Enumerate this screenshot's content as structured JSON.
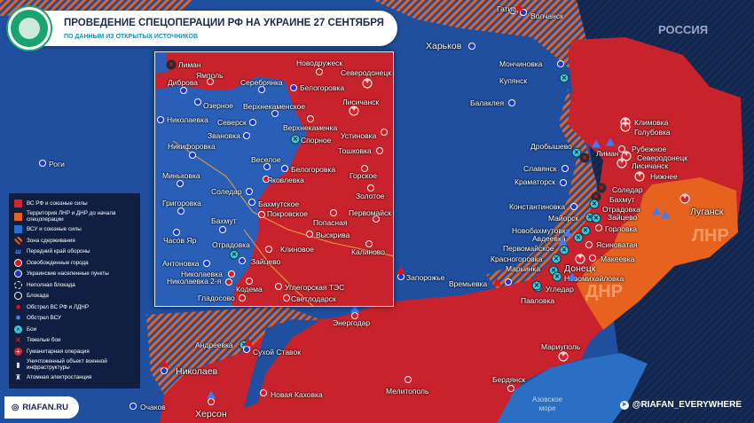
{
  "header": {
    "title": "ПРОВЕДЕНИЕ СПЕЦОПЕРАЦИИ РФ НА УКРАИНЕ 27 СЕНТЯБРЯ",
    "subtitle": "ПО ДАННЫМ ИЗ ОТКРЫТЫХ ИСТОЧНИКОВ"
  },
  "colors": {
    "rf_forces": "#c8232c",
    "lnr_dnr": "#e8621f",
    "ua_forces": "#1f4f9e",
    "russia": "#13264d",
    "containment_stripes": "#e8621f"
  },
  "regions": {
    "russia": "РОССИЯ",
    "lnr": "ЛНР",
    "dnr": "ДНР",
    "sea": "Азовское море"
  },
  "legend": [
    {
      "icon": "red-square",
      "label": "ВС РФ и союзные силы"
    },
    {
      "icon": "orange-square",
      "label": "Территория ЛНР и ДНР до начала спецоперации"
    },
    {
      "icon": "blue-square",
      "label": "ВСУ и союзные силы"
    },
    {
      "icon": "striped-zone",
      "label": "Зона сдерживания"
    },
    {
      "icon": "defense-line",
      "label": "Передний край обороны"
    },
    {
      "icon": "red-dot",
      "label": "Освобожденные города"
    },
    {
      "icon": "blue-dot",
      "label": "Украинские населенные пункты"
    },
    {
      "icon": "dashed-circle",
      "label": "Неполная блокада"
    },
    {
      "icon": "circle",
      "label": "Блокада"
    },
    {
      "icon": "red-explosion",
      "label": "Обстрел ВС РФ и ЛДНР"
    },
    {
      "icon": "blue-explosion",
      "label": "Обстрел ВСУ"
    },
    {
      "icon": "battle-x",
      "label": "Бои"
    },
    {
      "icon": "heavy-battle-x",
      "label": "Тяжелые бои"
    },
    {
      "icon": "red-cross",
      "label": "Гуманитарная операция"
    },
    {
      "icon": "destroyed-building",
      "label": "Уничтоженный объект военной инфраструктуры"
    },
    {
      "icon": "nuclear-plant",
      "label": "Атомная электростанция"
    }
  ],
  "main_map": {
    "cities": [
      {
        "name": "Гатище",
        "marker": "ukrainian"
      },
      {
        "name": "Волчанск",
        "marker": "ukrainian"
      },
      {
        "name": "Харьков",
        "marker": "ukrainian"
      },
      {
        "name": "Мончиновка",
        "marker": "ukrainian"
      },
      {
        "name": "Купянск",
        "marker": "battle"
      },
      {
        "name": "Балаклея",
        "marker": "ukrainian"
      },
      {
        "name": "Роги",
        "marker": "ukrainian"
      },
      {
        "name": "Дробышево",
        "marker": "battle"
      },
      {
        "name": "Лиман",
        "marker": "heavy"
      },
      {
        "name": "Славянск",
        "marker": "ukrainian"
      },
      {
        "name": "Краматорск",
        "marker": "ukrainian"
      },
      {
        "name": "Константиновка",
        "marker": "ukrainian"
      },
      {
        "name": "Майорск",
        "marker": "battle"
      },
      {
        "name": "Новобахмутовка",
        "marker": "battle"
      },
      {
        "name": "Авдеевка",
        "marker": "battle"
      },
      {
        "name": "Первомайское",
        "marker": "battle"
      },
      {
        "name": "Красногоровка",
        "marker": "battle"
      },
      {
        "name": "Марьинка",
        "marker": "battle"
      },
      {
        "name": "Донецк",
        "marker": "humanitarian"
      },
      {
        "name": "Новомихайловка",
        "marker": "battle"
      },
      {
        "name": "Угледар",
        "marker": "battle"
      },
      {
        "name": "Павловка",
        "marker": "battle"
      },
      {
        "name": "Времьевка",
        "marker": "ukrainian"
      },
      {
        "name": "Климовка",
        "marker": "humanitarian"
      },
      {
        "name": "Голубовка",
        "marker": "humanitarian"
      },
      {
        "name": "Рубежное",
        "marker": "liberated"
      },
      {
        "name": "Северодонецк",
        "marker": "humanitarian"
      },
      {
        "name": "Лисичанск",
        "marker": "humanitarian"
      },
      {
        "name": "Нижнее",
        "marker": "humanitarian"
      },
      {
        "name": "Соледар",
        "marker": "heavy"
      },
      {
        "name": "Бахмут",
        "marker": "heavy"
      },
      {
        "name": "Отрадовка",
        "marker": "battle"
      },
      {
        "name": "Зайцево",
        "marker": "battle"
      },
      {
        "name": "Горловка",
        "marker": "liberated"
      },
      {
        "name": "Ясиноватая",
        "marker": "liberated"
      },
      {
        "name": "Макеевка",
        "marker": "liberated"
      },
      {
        "name": "Луганск",
        "marker": "humanitarian"
      },
      {
        "name": "Запорожье",
        "marker": "ukrainian"
      },
      {
        "name": "Энергодар",
        "marker": "liberated"
      },
      {
        "name": "Андреевка",
        "marker": "battle"
      },
      {
        "name": "Сухой Ставок",
        "marker": "ukrainian"
      },
      {
        "name": "Николаев",
        "marker": "ukrainian"
      },
      {
        "name": "Очаков",
        "marker": "ukrainian"
      },
      {
        "name": "Херсон",
        "marker": "liberated"
      },
      {
        "name": "Новая Каховка",
        "marker": "liberated"
      },
      {
        "name": "Мелитополь",
        "marker": "liberated"
      },
      {
        "name": "Бердянск",
        "marker": "liberated"
      },
      {
        "name": "Мариуполь",
        "marker": "humanitarian"
      }
    ]
  },
  "inset": {
    "cities": [
      {
        "name": "Лиман",
        "marker": "heavy"
      },
      {
        "name": "Ямполь",
        "marker": "liberated"
      },
      {
        "name": "Диброва",
        "marker": "ukrainian"
      },
      {
        "name": "Серебрянка",
        "marker": "ukrainian"
      },
      {
        "name": "Новодружеск",
        "marker": "liberated"
      },
      {
        "name": "Северодонецк",
        "marker": "humanitarian"
      },
      {
        "name": "Белогоровка",
        "marker": "ukrainian"
      },
      {
        "name": "Озерное",
        "marker": "ukrainian"
      },
      {
        "name": "Верхнекаменское",
        "marker": "ukrainian"
      },
      {
        "name": "Николаевка",
        "marker": "ukrainian"
      },
      {
        "name": "Северск",
        "marker": "ukrainian"
      },
      {
        "name": "Лисичанск",
        "marker": "humanitarian"
      },
      {
        "name": "Верхнекаменка",
        "marker": "liberated"
      },
      {
        "name": "Звановка",
        "marker": "ukrainian"
      },
      {
        "name": "Спорное",
        "marker": "battle"
      },
      {
        "name": "Устиновка",
        "marker": "liberated"
      },
      {
        "name": "Никифоровка",
        "marker": "ukrainian"
      },
      {
        "name": "Тошковка",
        "marker": "liberated"
      },
      {
        "name": "Веселое",
        "marker": "ukrainian"
      },
      {
        "name": "Белогоровка",
        "marker": "ukrainian"
      },
      {
        "name": "Горское",
        "marker": "liberated"
      },
      {
        "name": "Миньковка",
        "marker": "ukrainian"
      },
      {
        "name": "Яковлевка",
        "marker": "liberated"
      },
      {
        "name": "Соледар",
        "marker": "ukrainian"
      },
      {
        "name": "Золотое",
        "marker": "liberated"
      },
      {
        "name": "Григоровка",
        "marker": "ukrainian"
      },
      {
        "name": "Бахмутское",
        "marker": "ukrainian"
      },
      {
        "name": "Покровское",
        "marker": "liberated"
      },
      {
        "name": "Первомайск",
        "marker": "liberated"
      },
      {
        "name": "Попасная",
        "marker": "liberated"
      },
      {
        "name": "Бахмут",
        "marker": "ukrainian"
      },
      {
        "name": "Часов Яр",
        "marker": "ukrainian"
      },
      {
        "name": "Выскрива",
        "marker": "liberated"
      },
      {
        "name": "Отрадовка",
        "marker": "battle"
      },
      {
        "name": "Клиновое",
        "marker": "liberated"
      },
      {
        "name": "Калиново",
        "marker": "liberated"
      },
      {
        "name": "Антоновка",
        "marker": "ukrainian"
      },
      {
        "name": "Зайцево",
        "marker": "ukrainian"
      },
      {
        "name": "Николаевка",
        "marker": "liberated"
      },
      {
        "name": "Николаевка 2-я",
        "marker": "liberated"
      },
      {
        "name": "Кодема",
        "marker": "liberated"
      },
      {
        "name": "Углегорская ТЭС",
        "marker": "liberated"
      },
      {
        "name": "Гладосово",
        "marker": "liberated"
      },
      {
        "name": "Светлодарск",
        "marker": "liberated"
      }
    ]
  },
  "footer": {
    "site": "RIAFAN.RU",
    "telegram": "@RIAFAN_EVERYWHERE"
  }
}
